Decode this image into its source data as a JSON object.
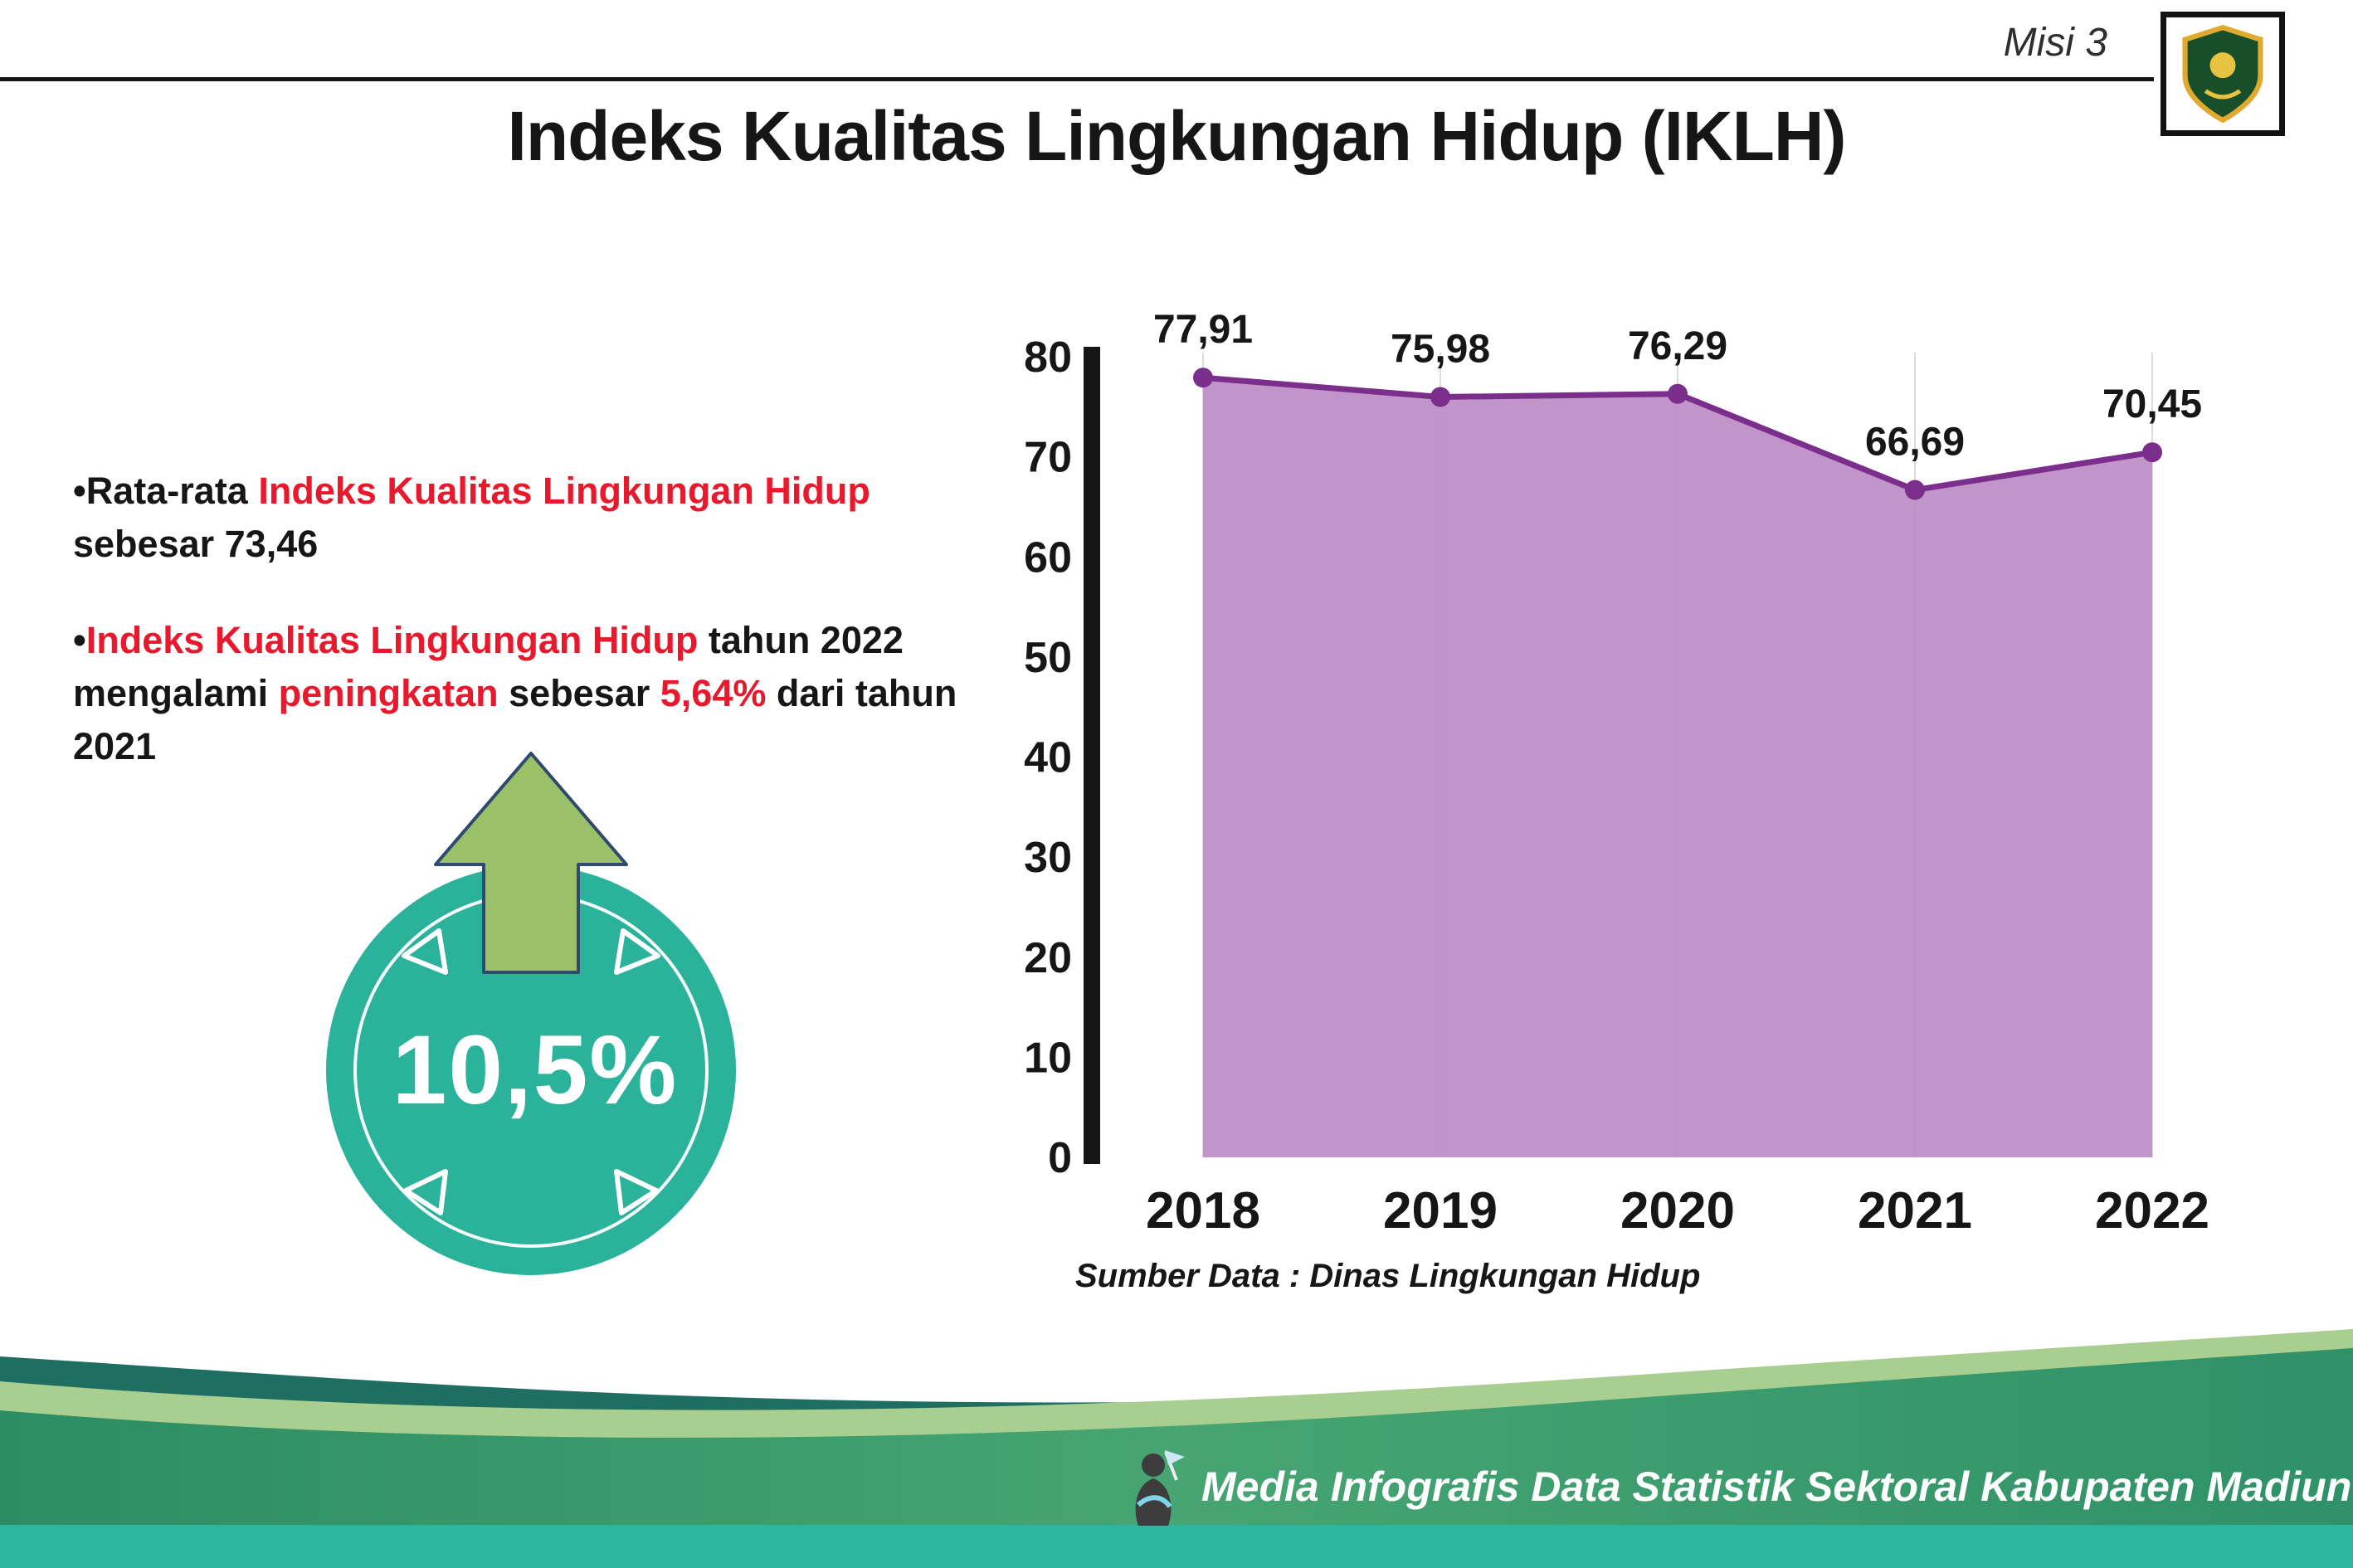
{
  "colors": {
    "accent_red": "#e8192c",
    "badge_teal": "#2bb29a",
    "arrow_green": "#9ac168",
    "purple_fill": "#bd8cc6",
    "purple_line": "#7b2e8c",
    "footer_bar_teal": "#2ab6a1"
  },
  "page": {
    "misi_label": "Misi 3",
    "title": "Indeks Kualitas Lingkungan Hidup (IKLH)",
    "bullet_marker": "•",
    "source_label": "Sumber Data : Dinas Lingkungan Hidup",
    "footer_text": "Media Infografis Data Statistik Sektoral Kabupaten Madiun |"
  },
  "bullets": {
    "b1": {
      "p1": "Rata-rata ",
      "r1": "Indeks Kualitas Lingkungan Hidup",
      "p2": " sebesar 73,46"
    },
    "b2": {
      "r1": "Indeks Kualitas Lingkungan Hidup",
      "p1": " tahun 2022 mengalami ",
      "r2": "peningkatan",
      "p2": " sebesar ",
      "r3": "5,64%",
      "p3": " dari tahun 2021"
    }
  },
  "badge": {
    "value": "10,5%"
  },
  "chart_data": {
    "type": "area",
    "categories": [
      "2018",
      "2019",
      "2020",
      "2021",
      "2022"
    ],
    "values": [
      77.91,
      75.98,
      76.29,
      66.69,
      70.45
    ],
    "value_labels": [
      "77,91",
      "75,98",
      "76,29",
      "66,69",
      "70,45"
    ],
    "ylim": [
      0,
      80
    ],
    "yticks": [
      0,
      10,
      20,
      30,
      40,
      50,
      60,
      70,
      80
    ],
    "grid": "vertical-light",
    "legend": "none",
    "area_color": "#bd8cc6",
    "line_color": "#7b2e8c",
    "source": "Sumber Data : Dinas Lingkungan Hidup"
  }
}
